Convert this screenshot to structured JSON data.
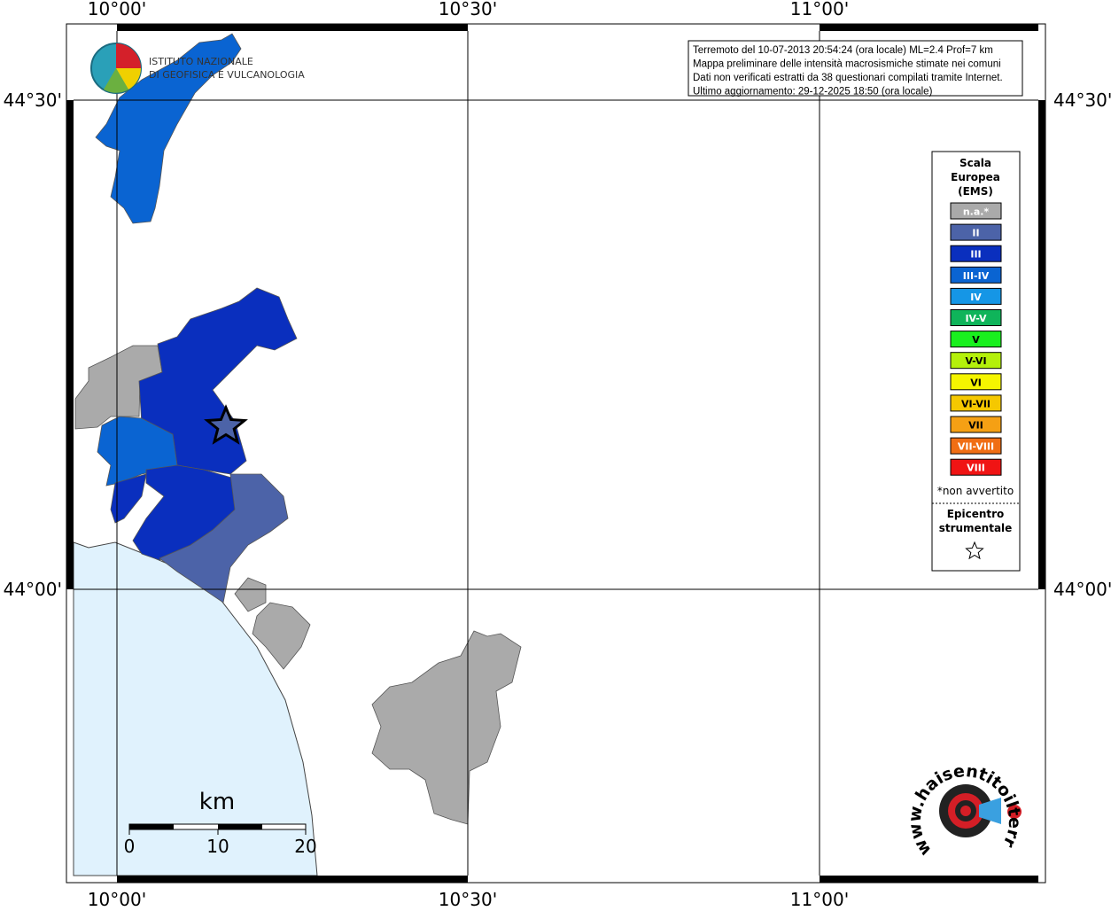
{
  "map": {
    "lon_labels": [
      "10°00'",
      "10°30'",
      "11°00'"
    ],
    "lat_labels": [
      "44°30'",
      "44°00'"
    ],
    "logo": [
      "ISTITUTO NAZIONALE",
      "DI GEOFISICA E VULCANOLOGIA"
    ],
    "info": [
      "Terremoto del 10-07-2013 20:54:24 (ora locale) ML=2.4 Prof=7 km",
      "Mappa preliminare delle intensità macrosismiche stimate nei comuni",
      "Dati non verificati estratti da 38 questionari compilati tramite Internet.",
      "Ultimo aggiornamento: 29-12-2025 18:50 (ora locale)"
    ],
    "legend": {
      "title": [
        "Scala",
        "Europea",
        "(EMS)"
      ],
      "items": [
        {
          "label": "n.a.*",
          "color": "#aaaaaa"
        },
        {
          "label": "II",
          "color": "#4c63a8"
        },
        {
          "label": "III",
          "color": "#0a2fbe"
        },
        {
          "label": "III-IV",
          "color": "#0a64d2"
        },
        {
          "label": "IV",
          "color": "#1596e6"
        },
        {
          "label": "IV-V",
          "color": "#0fb45a"
        },
        {
          "label": "V",
          "color": "#19f01e"
        },
        {
          "label": "V-VI",
          "color": "#b4f00a"
        },
        {
          "label": "VI",
          "color": "#f5f500"
        },
        {
          "label": "VI-VII",
          "color": "#f5c800"
        },
        {
          "label": "VII",
          "color": "#f5a014"
        },
        {
          "label": "VII-VIII",
          "color": "#f06e14"
        },
        {
          "label": "VIII",
          "color": "#f01414"
        }
      ],
      "note": "*non avvertito",
      "epicenter": [
        "Epicentro",
        "strumentale"
      ]
    },
    "scale": {
      "unit": "km",
      "ticks": [
        0,
        10,
        20
      ]
    },
    "site": "www.haisentitoilterremoto.it"
  }
}
